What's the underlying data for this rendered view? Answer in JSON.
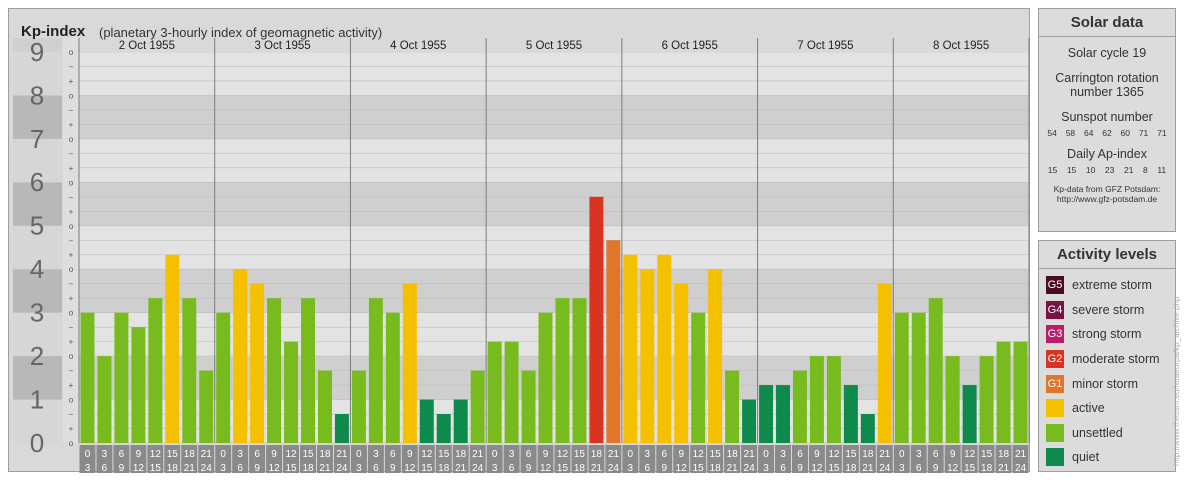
{
  "header": {
    "title": "Kp-index",
    "subtitle": "(planetary 3-hourly index of geomagnetic activity)"
  },
  "chart_data": {
    "type": "bar",
    "ylim": [
      0,
      9
    ],
    "y_ticks": [
      "0",
      "1",
      "2",
      "3",
      "4",
      "5",
      "6",
      "7",
      "8",
      "9"
    ],
    "minor_tick_labels": [
      "o",
      "+",
      "−"
    ],
    "days": [
      "2 Oct 1955",
      "3 Oct 1955",
      "4 Oct 1955",
      "5 Oct 1955",
      "6 Oct 1955",
      "7 Oct 1955",
      "8 Oct 1955"
    ],
    "interval_starts": [
      "0",
      "3",
      "6",
      "9",
      "12",
      "15",
      "18",
      "21"
    ],
    "interval_ends": [
      "3",
      "6",
      "9",
      "12",
      "15",
      "18",
      "21",
      "24"
    ],
    "values": [
      3.0,
      2.0,
      3.0,
      2.667,
      3.333,
      4.333,
      3.333,
      1.667,
      3.0,
      4.0,
      3.667,
      3.333,
      2.333,
      3.333,
      1.667,
      0.667,
      1.667,
      3.333,
      3.0,
      3.667,
      1.0,
      0.667,
      1.0,
      1.667,
      2.333,
      2.333,
      1.667,
      3.0,
      3.333,
      3.333,
      5.667,
      4.667,
      4.333,
      4.0,
      4.333,
      3.667,
      3.0,
      4.0,
      1.667,
      1.0,
      1.333,
      1.333,
      1.667,
      2.0,
      2.0,
      1.333,
      0.667,
      3.667,
      3.0,
      3.0,
      3.333,
      2.0,
      1.333,
      2.0,
      2.333,
      2.333
    ],
    "levels": [
      {
        "code": "G5",
        "label": "extreme storm",
        "color": "#4a0e24",
        "min": 9
      },
      {
        "code": "G4",
        "label": "severe storm",
        "color": "#7b1245",
        "min": 8
      },
      {
        "code": "G3",
        "label": "strong storm",
        "color": "#b81d68",
        "min": 7
      },
      {
        "code": "G2",
        "label": "moderate storm",
        "color": "#d93421",
        "min": 5.5
      },
      {
        "code": "G1",
        "label": "minor storm",
        "color": "#e0762a",
        "min": 4.5
      },
      {
        "code": "",
        "label": "active",
        "color": "#f5c000",
        "min": 3.5
      },
      {
        "code": "",
        "label": "unsettled",
        "color": "#78bb1f",
        "min": 1.5
      },
      {
        "code": "",
        "label": "quiet",
        "color": "#0e8a4d",
        "min": 0
      }
    ]
  },
  "solar_data": {
    "title": "Solar data",
    "solar_cycle": "Solar cycle 19",
    "carrington_line1": "Carrington rotation",
    "carrington_line2": "number 1365",
    "sunspot_title": "Sunspot number",
    "sunspot_values": [
      "54",
      "58",
      "64",
      "62",
      "60",
      "71",
      "71"
    ],
    "ap_title": "Daily Ap-index",
    "ap_values": [
      "15",
      "15",
      "10",
      "23",
      "21",
      "8",
      "11"
    ],
    "credit_line1": "Kp-data from GFZ Potsdam:",
    "credit_line2": "http://www.gfz-potsdam.de"
  },
  "activity_levels": {
    "title": "Activity levels",
    "items": [
      {
        "code": "G5",
        "label": "extreme storm",
        "color": "#4a0e24"
      },
      {
        "code": "G4",
        "label": "severe storm",
        "color": "#7b1245"
      },
      {
        "code": "G3",
        "label": "strong storm",
        "color": "#b81d68"
      },
      {
        "code": "G2",
        "label": "moderate storm",
        "color": "#d93421"
      },
      {
        "code": "G1",
        "label": "minor storm",
        "color": "#e0762a"
      },
      {
        "code": "",
        "label": "active",
        "color": "#f5c000"
      },
      {
        "code": "",
        "label": "unsettled",
        "color": "#78bb1f"
      },
      {
        "code": "",
        "label": "quiet",
        "color": "#0e8a4d"
      }
    ]
  },
  "watermark": "http://www.theusm.eu/teraeurpa/kp_archive.php"
}
